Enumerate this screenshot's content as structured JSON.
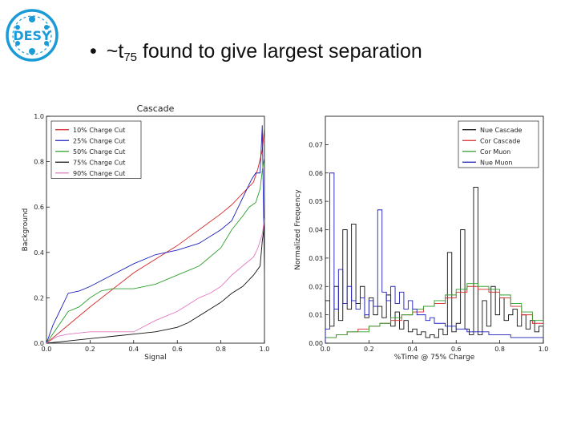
{
  "slide": {
    "bullet_symbol": "•",
    "heading_prefix": "~t",
    "heading_subscript": "75",
    "heading_suffix": " found to give largest separation",
    "logo_text": "DESY",
    "logo_color": "#1a9ad6"
  },
  "chart_data": [
    {
      "type": "line",
      "title": "Cascade",
      "xlabel": "Signal",
      "ylabel": "Background",
      "xlim": [
        0,
        1
      ],
      "ylim": [
        0,
        1
      ],
      "xticks": [
        "0.0",
        "0.2",
        "0.4",
        "0.6",
        "0.8",
        "1.0"
      ],
      "yticks": [
        "0.0",
        "0.2",
        "0.4",
        "0.6",
        "0.8",
        "1.0"
      ],
      "grid": false,
      "legend_position": "top-left",
      "series": [
        {
          "name": "10% Charge Cut",
          "color": "#d62728",
          "x": [
            0,
            0.2,
            0.4,
            0.6,
            0.8,
            0.85,
            0.9,
            0.95,
            0.97,
            0.99,
            1.0
          ],
          "y": [
            0,
            0.16,
            0.31,
            0.43,
            0.57,
            0.61,
            0.66,
            0.71,
            0.77,
            0.85,
            0.95
          ]
        },
        {
          "name": "25% Charge Cut",
          "color": "#1f1fbf",
          "x": [
            0,
            0.03,
            0.06,
            0.1,
            0.15,
            0.2,
            0.3,
            0.4,
            0.5,
            0.6,
            0.7,
            0.8,
            0.85,
            0.88,
            0.9,
            0.92,
            0.94,
            0.96,
            0.98,
            0.99,
            1.0
          ],
          "y": [
            0,
            0.08,
            0.14,
            0.22,
            0.23,
            0.25,
            0.3,
            0.35,
            0.39,
            0.41,
            0.44,
            0.5,
            0.54,
            0.6,
            0.64,
            0.68,
            0.72,
            0.75,
            0.75,
            0.96,
            0.3
          ]
        },
        {
          "name": "50% Charge Cut",
          "color": "#2ca02c",
          "x": [
            0,
            0.05,
            0.1,
            0.15,
            0.2,
            0.25,
            0.3,
            0.4,
            0.5,
            0.6,
            0.7,
            0.8,
            0.85,
            0.9,
            0.93,
            0.96,
            0.98,
            0.99,
            1.0
          ],
          "y": [
            0,
            0.07,
            0.14,
            0.16,
            0.2,
            0.23,
            0.24,
            0.24,
            0.26,
            0.3,
            0.34,
            0.42,
            0.5,
            0.56,
            0.6,
            0.62,
            0.68,
            0.76,
            0.82
          ]
        },
        {
          "name": "75% Charge Cut",
          "color": "#111111",
          "x": [
            0,
            0.1,
            0.2,
            0.3,
            0.4,
            0.5,
            0.55,
            0.6,
            0.65,
            0.7,
            0.75,
            0.8,
            0.85,
            0.9,
            0.95,
            0.98,
            0.99,
            1.0
          ],
          "y": [
            0,
            0.01,
            0.02,
            0.03,
            0.04,
            0.05,
            0.06,
            0.07,
            0.09,
            0.12,
            0.15,
            0.18,
            0.22,
            0.25,
            0.3,
            0.34,
            0.45,
            0.52
          ]
        },
        {
          "name": "90% Charge Cut",
          "color": "#e377c2",
          "x": [
            0,
            0.05,
            0.1,
            0.2,
            0.3,
            0.4,
            0.5,
            0.6,
            0.65,
            0.7,
            0.75,
            0.8,
            0.85,
            0.9,
            0.95,
            0.97,
            0.99,
            1.0
          ],
          "y": [
            0,
            0.03,
            0.04,
            0.05,
            0.05,
            0.05,
            0.1,
            0.14,
            0.17,
            0.2,
            0.22,
            0.25,
            0.3,
            0.34,
            0.38,
            0.42,
            0.48,
            0.55
          ]
        }
      ]
    },
    {
      "type": "line",
      "title": "",
      "xlabel": "%Time @ 75% Charge",
      "ylabel": "Normalized Frequency",
      "xlim": [
        0,
        1
      ],
      "ylim": [
        0,
        0.08
      ],
      "xticks": [
        "0.0",
        "0.2",
        "0.4",
        "0.6",
        "0.8",
        "1.0"
      ],
      "yticks": [
        "0.00",
        "0.01",
        "0.02",
        "0.03",
        "0.04",
        "0.05",
        "0.06",
        "0.07"
      ],
      "grid": false,
      "legend_position": "top-right",
      "series": [
        {
          "name": "Nue Cascade",
          "color": "#111111",
          "x": [
            0.0,
            0.02,
            0.04,
            0.06,
            0.08,
            0.1,
            0.12,
            0.14,
            0.16,
            0.18,
            0.2,
            0.22,
            0.24,
            0.26,
            0.28,
            0.3,
            0.32,
            0.34,
            0.36,
            0.38,
            0.4,
            0.42,
            0.44,
            0.46,
            0.48,
            0.5,
            0.52,
            0.54,
            0.56,
            0.58,
            0.6,
            0.62,
            0.64,
            0.66,
            0.68,
            0.7,
            0.72,
            0.74,
            0.76,
            0.78,
            0.8,
            0.82,
            0.84,
            0.86,
            0.88,
            0.9,
            0.92,
            0.94,
            0.96,
            0.98,
            1.0
          ],
          "y": [
            0.015,
            0.006,
            0.02,
            0.008,
            0.04,
            0.012,
            0.042,
            0.014,
            0.02,
            0.009,
            0.016,
            0.01,
            0.013,
            0.009,
            0.017,
            0.006,
            0.011,
            0.005,
            0.008,
            0.004,
            0.005,
            0.003,
            0.004,
            0.002,
            0.003,
            0.002,
            0.005,
            0.003,
            0.032,
            0.004,
            0.007,
            0.04,
            0.005,
            0.003,
            0.055,
            0.003,
            0.015,
            0.006,
            0.02,
            0.01,
            0.016,
            0.008,
            0.01,
            0.012,
            0.006,
            0.01,
            0.005,
            0.008,
            0.004,
            0.006,
            0.005
          ]
        },
        {
          "name": "Cor Cascade",
          "color": "#d62728",
          "x": [
            0.0,
            0.05,
            0.1,
            0.15,
            0.2,
            0.25,
            0.3,
            0.35,
            0.4,
            0.45,
            0.5,
            0.55,
            0.6,
            0.65,
            0.7,
            0.75,
            0.8,
            0.85,
            0.9,
            0.95,
            1.0
          ],
          "y": [
            0.002,
            0.003,
            0.004,
            0.005,
            0.006,
            0.007,
            0.008,
            0.01,
            0.011,
            0.013,
            0.014,
            0.016,
            0.018,
            0.02,
            0.019,
            0.018,
            0.016,
            0.013,
            0.01,
            0.007,
            0.005
          ]
        },
        {
          "name": "Cor Muon",
          "color": "#2ca02c",
          "x": [
            0.0,
            0.05,
            0.1,
            0.15,
            0.2,
            0.25,
            0.3,
            0.35,
            0.4,
            0.45,
            0.5,
            0.55,
            0.6,
            0.65,
            0.7,
            0.75,
            0.8,
            0.85,
            0.9,
            0.95,
            1.0
          ],
          "y": [
            0.002,
            0.003,
            0.004,
            0.004,
            0.006,
            0.007,
            0.009,
            0.01,
            0.012,
            0.013,
            0.015,
            0.017,
            0.019,
            0.021,
            0.02,
            0.019,
            0.017,
            0.014,
            0.011,
            0.008,
            0.006
          ]
        },
        {
          "name": "Nue Muon",
          "color": "#1f1fbf",
          "x": [
            0.0,
            0.02,
            0.04,
            0.06,
            0.08,
            0.1,
            0.12,
            0.14,
            0.16,
            0.18,
            0.2,
            0.22,
            0.24,
            0.26,
            0.28,
            0.3,
            0.32,
            0.34,
            0.36,
            0.38,
            0.4,
            0.42,
            0.44,
            0.46,
            0.48,
            0.5,
            0.55,
            0.6,
            0.65,
            0.7,
            0.75,
            0.8,
            0.85,
            0.9,
            0.95,
            1.0
          ],
          "y": [
            0.005,
            0.06,
            0.012,
            0.026,
            0.014,
            0.02,
            0.015,
            0.012,
            0.016,
            0.01,
            0.015,
            0.013,
            0.047,
            0.018,
            0.015,
            0.02,
            0.014,
            0.018,
            0.012,
            0.015,
            0.012,
            0.01,
            0.01,
            0.008,
            0.009,
            0.007,
            0.006,
            0.005,
            0.004,
            0.004,
            0.003,
            0.003,
            0.002,
            0.002,
            0.002,
            0.002
          ]
        }
      ]
    }
  ]
}
